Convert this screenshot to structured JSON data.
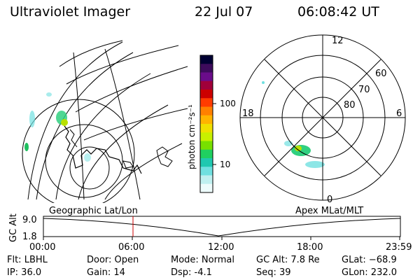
{
  "header": {
    "instrument": "Ultraviolet Imager",
    "date": "22 Jul 07",
    "time": "06:08:42 UT"
  },
  "colorbar": {
    "label": "photon cm⁻²s⁻¹",
    "ticks": [
      "100",
      "10"
    ],
    "scale": "log",
    "colors": [
      "#000033",
      "#3d0b5c",
      "#6a0c8a",
      "#a0003a",
      "#cc0000",
      "#ff3b00",
      "#ff8000",
      "#ffb400",
      "#f0e000",
      "#c8f000",
      "#78e000",
      "#20d060",
      "#20c8b0",
      "#70e0e0",
      "#c0f0f0",
      "#eefcfc"
    ]
  },
  "polar": {
    "mlt_labels": {
      "top": "12",
      "left": "18",
      "right": "6",
      "bottom": "0"
    },
    "lat_labels": [
      "60",
      "70",
      "80"
    ]
  },
  "timeline": {
    "left_label": "Geographic Lat/Lon",
    "right_label": "Apex MLat/MLT",
    "yaxis_title": "GC Alt",
    "yticks": [
      "9.0",
      "1.8"
    ],
    "xticks": [
      "00:00",
      "06:00",
      "12:00",
      "18:00",
      "23:59"
    ],
    "marker_color": "#cc0000"
  },
  "info": {
    "flt": "Flt: LBHL",
    "ip": "IP: 36.0",
    "door": "Door: Open",
    "gain": "Gain: 14",
    "mode": "Mode: Normal",
    "dsp": "Dsp:    -4.1",
    "gcalt": "GC Alt: 7.8 Re",
    "seq": "Seq: 39",
    "glat": "GLat: −68.9",
    "glon": "GLon: 232.0"
  }
}
